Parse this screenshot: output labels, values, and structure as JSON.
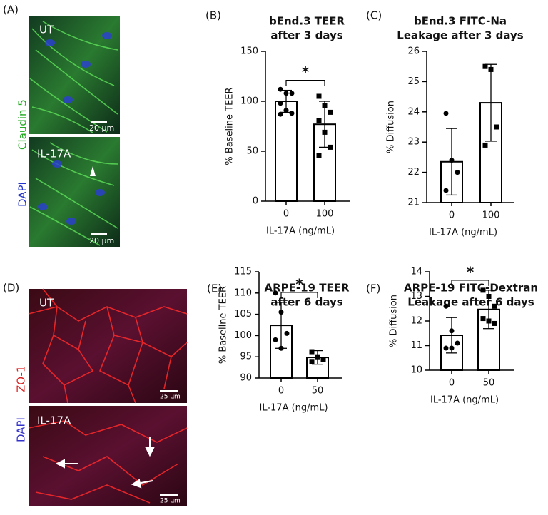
{
  "images": [
    {
      "label": "(A)",
      "stain": [
        "DAPI",
        "Claudin 5"
      ],
      "panels": [
        {
          "label": "UT",
          "scale": "20 μm"
        },
        {
          "label": "IL-17A",
          "scale": "20 μm"
        }
      ]
    },
    {
      "label": "(D)",
      "stain": [
        "DAPI",
        "ZO-1"
      ],
      "panels": [
        {
          "label": "UT",
          "scale": "25 μm"
        },
        {
          "label": "IL-17A",
          "scale": "25 μm"
        }
      ]
    }
  ],
  "chart_data": [
    {
      "type": "bar",
      "label": "(B)",
      "title": [
        "bEnd.3 TEER",
        "after 3 days"
      ],
      "x_label": "IL-17A (ng/mL)",
      "y_label": "% Baseline  TEER",
      "categories": [
        "0",
        "100"
      ],
      "values": [
        100,
        77
      ],
      "errors": [
        11,
        23
      ],
      "points": [
        [
          112,
          108,
          108,
          98,
          91,
          88,
          87
        ],
        [
          105,
          96,
          89,
          81,
          69,
          54,
          46
        ]
      ],
      "ylim": [
        0,
        150
      ],
      "yticks": [
        0,
        50,
        100,
        150
      ],
      "significance": "*",
      "color": "#ffffff"
    },
    {
      "type": "bar",
      "label": "(C)",
      "title": [
        "bEnd.3 FITC-Na",
        "Leakage after 3 days"
      ],
      "x_label": "IL-17A (ng/mL)",
      "y_label": "% Diffusion",
      "categories": [
        "0",
        "100"
      ],
      "values": [
        22.35,
        24.3
      ],
      "errors": [
        1.1,
        1.27
      ],
      "points": [
        [
          23.95,
          22.4,
          22.0,
          21.4
        ],
        [
          25.5,
          25.4,
          23.5,
          22.9
        ]
      ],
      "ylim": [
        21,
        26
      ],
      "yticks": [
        21,
        22,
        23,
        24,
        25,
        26
      ],
      "color": "#ffffff"
    },
    {
      "type": "bar",
      "label": "(E)",
      "title": [
        "ARPE-19 TEER",
        "after 6 days"
      ],
      "x_label": "IL-17A (ng/mL)",
      "y_label": "% Baseline TEER",
      "categories": [
        "0",
        "50"
      ],
      "values": [
        102.4,
        94.85
      ],
      "errors": [
        5.4,
        1.6
      ],
      "points": [
        [
          110,
          105.5,
          100.5,
          99,
          97
        ],
        [
          96.2,
          95.0,
          94.3,
          93.9
        ]
      ],
      "ylim": [
        90,
        115
      ],
      "yticks": [
        90,
        95,
        100,
        105,
        110,
        115
      ],
      "significance": "*",
      "color": "#ffffff"
    },
    {
      "type": "bar",
      "label": "(F)",
      "title": [
        "ARPE-19 FITC-Dextran",
        "Leakage after 6 days"
      ],
      "x_label": "IL-17A (ng/mL)",
      "y_label": "% Diffusion",
      "categories": [
        "0",
        "50"
      ],
      "values": [
        11.42,
        12.47
      ],
      "errors": [
        0.72,
        0.78
      ],
      "points": [
        [
          12.6,
          11.6,
          11.1,
          10.9,
          10.9
        ],
        [
          13.25,
          13.0,
          12.6,
          12.1,
          12.0,
          11.9
        ]
      ],
      "ylim": [
        10,
        14
      ],
      "yticks": [
        10,
        11,
        12,
        13,
        14
      ],
      "significance": "*",
      "color": "#ffffff"
    }
  ]
}
